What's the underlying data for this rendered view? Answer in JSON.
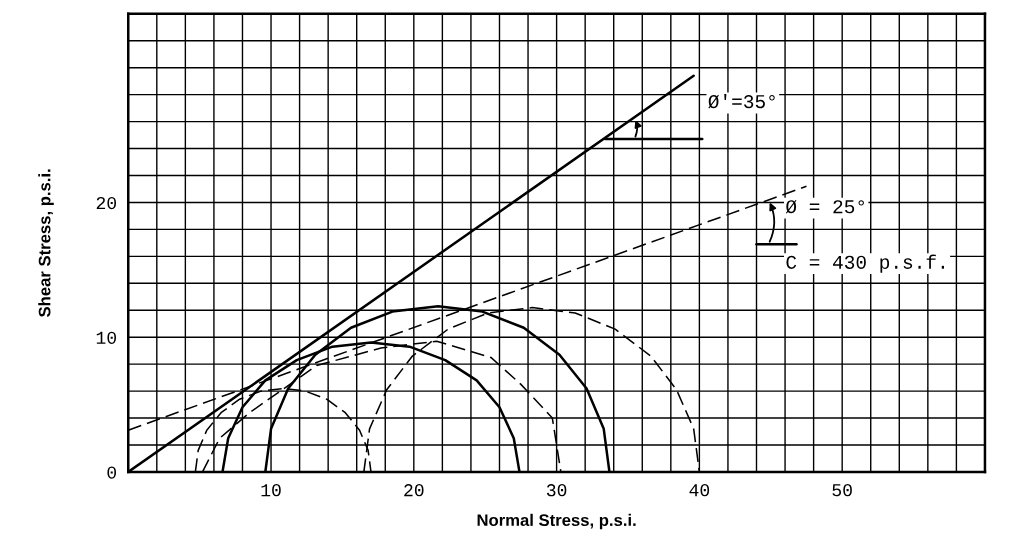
{
  "chart_data": {
    "type": "line",
    "xlabel": "Normal Stress, p.s.i.",
    "ylabel": "Shear Stress, p.s.i.",
    "xlim": [
      0,
      60
    ],
    "ylim": [
      0,
      34
    ],
    "xticks": [
      {
        "value": 0,
        "label": null
      },
      {
        "value": 2,
        "label": null
      },
      {
        "value": 4,
        "label": null
      },
      {
        "value": 6,
        "label": null
      },
      {
        "value": 8,
        "label": null
      },
      10,
      {
        "value": 12,
        "label": null
      },
      {
        "value": 14,
        "label": null
      },
      {
        "value": 16,
        "label": null
      },
      {
        "value": 18,
        "label": null
      },
      20,
      {
        "value": 22,
        "label": null
      },
      {
        "value": 24,
        "label": null
      },
      {
        "value": 26,
        "label": null
      },
      {
        "value": 28,
        "label": null
      },
      30,
      {
        "value": 32,
        "label": null
      },
      {
        "value": 34,
        "label": null
      },
      {
        "value": 36,
        "label": null
      },
      {
        "value": 38,
        "label": null
      },
      40,
      {
        "value": 42,
        "label": null
      },
      {
        "value": 44,
        "label": null
      },
      {
        "value": 46,
        "label": null
      },
      {
        "value": 48,
        "label": null
      },
      50,
      {
        "value": 52,
        "label": null
      },
      {
        "value": 54,
        "label": null
      },
      {
        "value": 56,
        "label": null
      },
      {
        "value": 58,
        "label": null
      },
      {
        "value": 60,
        "label": null
      }
    ],
    "yticks": [
      0,
      {
        "value": 2,
        "label": null
      },
      {
        "value": 4,
        "label": null
      },
      {
        "value": 6,
        "label": null
      },
      {
        "value": 8,
        "label": null
      },
      10,
      {
        "value": 12,
        "label": null
      },
      {
        "value": 14,
        "label": null
      },
      {
        "value": 16,
        "label": null
      },
      {
        "value": 18,
        "label": null
      },
      20,
      {
        "value": 22,
        "label": null
      },
      {
        "value": 24,
        "label": null
      },
      {
        "value": 26,
        "label": null
      },
      {
        "value": 28,
        "label": null
      },
      {
        "value": 30,
        "label": null
      },
      {
        "value": 32,
        "label": null
      },
      {
        "value": 34,
        "label": null
      }
    ],
    "grid": true,
    "series": [
      {
        "color": "#000000",
        "line_style": "solid",
        "x": [
          0,
          39.6
        ],
        "values": [
          0,
          29.4
        ]
      },
      {
        "color": "#000000",
        "line_style": "dashed",
        "x": [
          0,
          47.5
        ],
        "values": [
          3.1,
          21.2
        ]
      },
      {
        "color": "#000000",
        "line_style": "solid",
        "x": [
          6.6,
          7.0,
          8.0,
          9.6,
          11.8,
          14.3,
          17.0,
          19.7,
          22.2,
          24.4,
          26.0,
          27.0,
          27.4
        ],
        "values": [
          0,
          2.5,
          4.8,
          6.8,
          8.3,
          9.3,
          9.6,
          9.3,
          8.3,
          6.8,
          4.8,
          2.5,
          0
        ]
      },
      {
        "color": "#000000",
        "line_style": "solid",
        "x": [
          9.6,
          10.0,
          11.2,
          13.1,
          15.6,
          18.5,
          21.7,
          24.8,
          27.7,
          30.2,
          32.1,
          33.3,
          33.7
        ],
        "values": [
          0,
          3.2,
          6.2,
          8.7,
          10.7,
          11.9,
          12.3,
          11.9,
          10.7,
          8.7,
          6.2,
          3.2,
          0
        ]
      },
      {
        "color": "#000000",
        "line_style": "dashed",
        "x": [
          4.7,
          4.9,
          5.5,
          6.5,
          7.8,
          9.3,
          10.9,
          12.4,
          13.9,
          15.2,
          16.2,
          16.8,
          17.0
        ],
        "values": [
          0,
          1.6,
          3.1,
          4.4,
          5.4,
          6.0,
          6.2,
          6.0,
          5.4,
          4.4,
          3.1,
          1.6,
          0
        ]
      },
      {
        "color": "#000000",
        "line_style": "dashed",
        "x": [
          5.2,
          6.4,
          8.5,
          13.2,
          17.7,
          21.6,
          25.4,
          27.5,
          29.7,
          30.3
        ],
        "values": [
          0,
          2.5,
          4.4,
          7.9,
          9.2,
          9.7,
          8.5,
          6.5,
          4.0,
          0
        ]
      },
      {
        "color": "#000000",
        "line_style": "dashed",
        "x": [
          16.5,
          16.9,
          18.1,
          19.9,
          22.4,
          25.2,
          28.3,
          31.3,
          34.1,
          36.6,
          38.4,
          39.6,
          40.0
        ],
        "values": [
          0,
          3.2,
          6.1,
          8.6,
          10.6,
          11.8,
          12.2,
          11.8,
          10.6,
          8.6,
          6.1,
          3.2,
          0
        ]
      },
      {
        "color": "#000000",
        "line_style": "solid",
        "x": [
          33.4,
          40.2
        ],
        "values": [
          24.7,
          24.7
        ]
      },
      {
        "color": "#000000",
        "line_style": "solid",
        "x": [
          44.0,
          46.8
        ],
        "values": [
          16.9,
          16.9
        ]
      }
    ],
    "annotations": [
      "Ø'=35°",
      "Ø = 25°",
      "C = 430 p.s.f."
    ]
  }
}
